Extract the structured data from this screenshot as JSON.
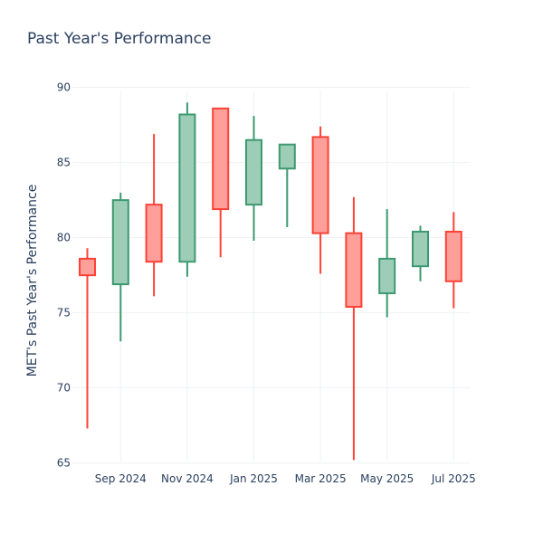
{
  "chart_data": {
    "type": "candlestick",
    "title": "Past Year's Performance",
    "xlabel": "",
    "ylabel": "MET's Past Year's Performance",
    "ylim": [
      64.5,
      91
    ],
    "y_ticks": [
      65,
      70,
      75,
      80,
      85,
      90
    ],
    "x_tick_labels": [
      "Sep 2024",
      "Nov 2024",
      "Jan 2025",
      "Mar 2025",
      "May 2025",
      "Jul 2025"
    ],
    "grid": true,
    "legend": "none",
    "colors": {
      "increasing_line": "#3d9970",
      "increasing_fill": "#9ecdb7",
      "decreasing_line": "#ff4136",
      "decreasing_fill": "#ff9f9a",
      "grid": "#eef1f6"
    },
    "candles": [
      {
        "open": 78.6,
        "high": 79.3,
        "low": 67.3,
        "close": 77.5
      },
      {
        "open": 76.9,
        "high": 83.0,
        "low": 73.1,
        "close": 82.5
      },
      {
        "open": 82.2,
        "high": 86.9,
        "low": 76.1,
        "close": 78.4
      },
      {
        "open": 78.4,
        "high": 89.0,
        "low": 77.4,
        "close": 88.2
      },
      {
        "open": 88.6,
        "high": 88.6,
        "low": 78.7,
        "close": 81.9
      },
      {
        "open": 82.2,
        "high": 88.1,
        "low": 79.8,
        "close": 86.5
      },
      {
        "open": 84.6,
        "high": 86.2,
        "low": 80.7,
        "close": 86.2
      },
      {
        "open": 86.7,
        "high": 87.4,
        "low": 77.6,
        "close": 80.3
      },
      {
        "open": 80.3,
        "high": 82.7,
        "low": 65.2,
        "close": 75.4
      },
      {
        "open": 76.3,
        "high": 81.9,
        "low": 74.7,
        "close": 78.6
      },
      {
        "open": 78.1,
        "high": 80.8,
        "low": 77.1,
        "close": 80.4
      },
      {
        "open": 80.4,
        "high": 81.7,
        "low": 75.3,
        "close": 77.1
      }
    ]
  }
}
